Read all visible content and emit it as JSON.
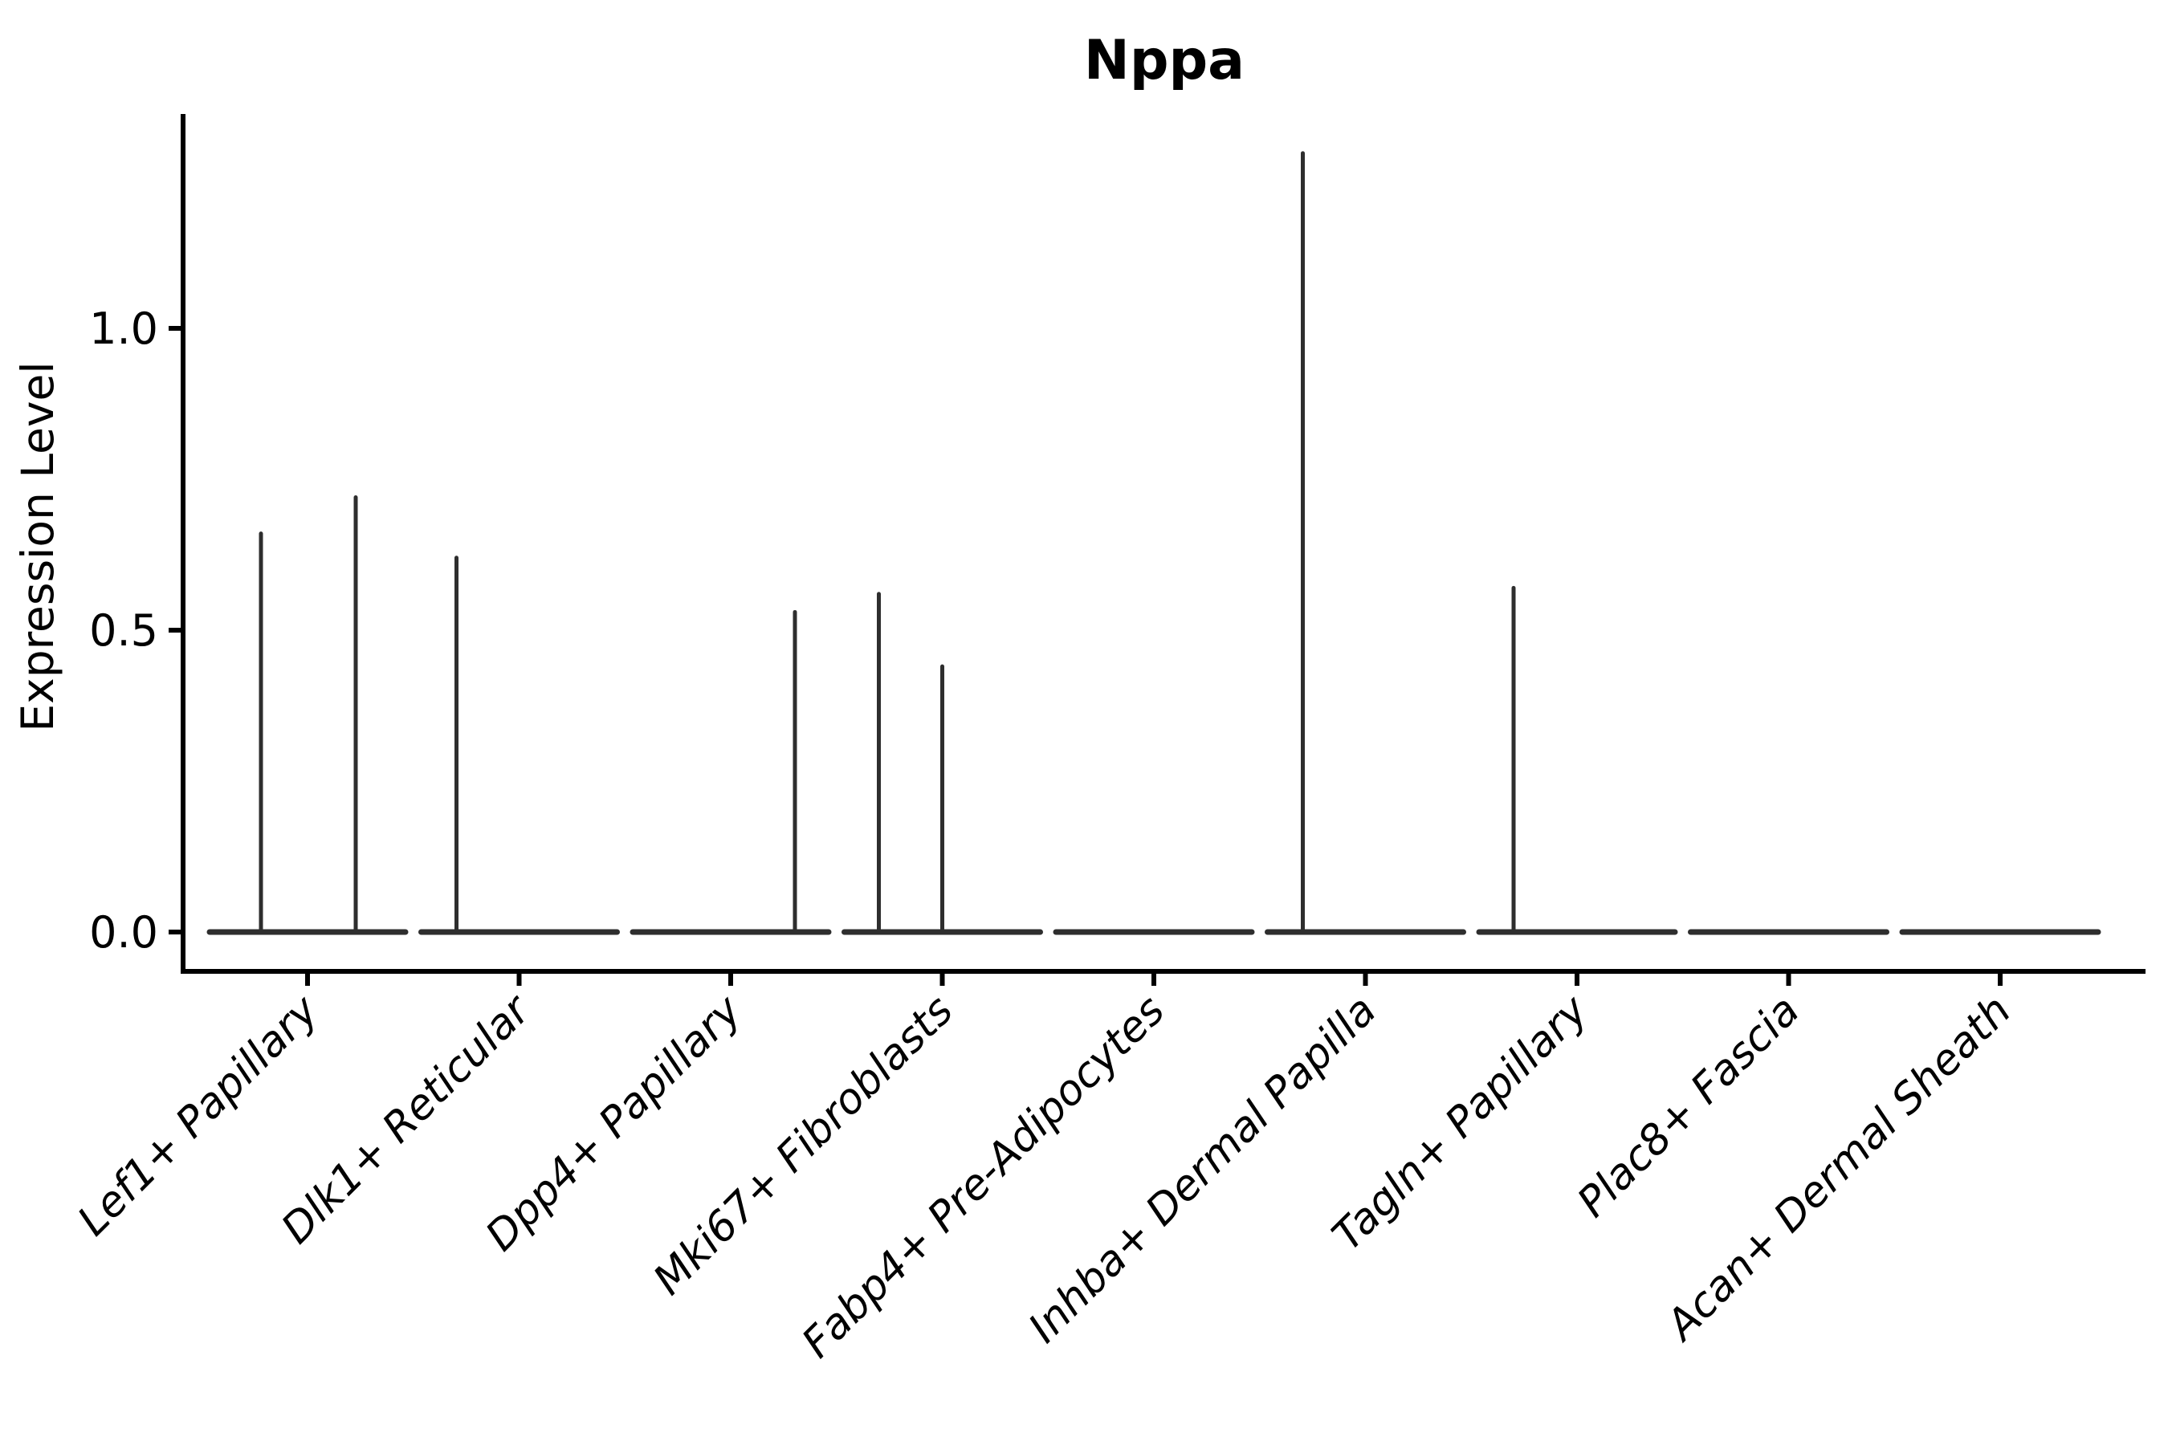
{
  "figure": {
    "background": "#ffffff",
    "axis_color": "#000000",
    "text_color": "#000000",
    "violin_color": "#2e2e2e"
  },
  "chart_data": {
    "type": "violin",
    "title": "Nppa",
    "ylabel": "Expression Level",
    "xlabel": "",
    "grid": false,
    "legend_position": "none",
    "ylim": [
      -0.065,
      1.356
    ],
    "yticks": [
      "0.0",
      "0.5",
      "1.0"
    ],
    "ytick_values": [
      0.0,
      0.5,
      1.0
    ],
    "x_label_rotation_deg": 45,
    "categories": [
      "Lef1+ Papillary",
      "Dlk1+ Reticular",
      "Dpp4+ Papillary",
      "Mki67+ Fibroblasts",
      "Fabp4+ Pre-Adipocytes",
      "Inhba+ Dermal Papilla",
      "Tagln+ Papillary",
      "Plac8+ Fascia",
      "Acan+ Dermal Sheath"
    ],
    "series": [
      {
        "name": "Lef1+ Papillary",
        "base_at_zero": true,
        "spikes": [
          {
            "offset": -58,
            "value": 0.66
          },
          {
            "offset": 60,
            "value": 0.72
          }
        ]
      },
      {
        "name": "Dlk1+ Reticular",
        "base_at_zero": true,
        "spikes": [
          {
            "offset": -78,
            "value": 0.62
          }
        ]
      },
      {
        "name": "Dpp4+ Papillary",
        "base_at_zero": true,
        "spikes": [
          {
            "offset": 80,
            "value": 0.53
          }
        ]
      },
      {
        "name": "Mki67+ Fibroblasts",
        "base_at_zero": true,
        "spikes": [
          {
            "offset": -79,
            "value": 0.56
          },
          {
            "offset": 0,
            "value": 0.44
          }
        ]
      },
      {
        "name": "Fabp4+ Pre-Adipocytes",
        "base_at_zero": true,
        "spikes": []
      },
      {
        "name": "Inhba+ Dermal Papilla",
        "base_at_zero": true,
        "spikes": [
          {
            "offset": -78,
            "value": 1.29
          }
        ]
      },
      {
        "name": "Tagln+ Papillary",
        "base_at_zero": true,
        "spikes": [
          {
            "offset": -79,
            "value": 0.57
          }
        ]
      },
      {
        "name": "Plac8+ Fascia",
        "base_at_zero": true,
        "spikes": []
      },
      {
        "name": "Acan+ Dermal Sheath",
        "base_at_zero": true,
        "spikes": []
      }
    ]
  }
}
